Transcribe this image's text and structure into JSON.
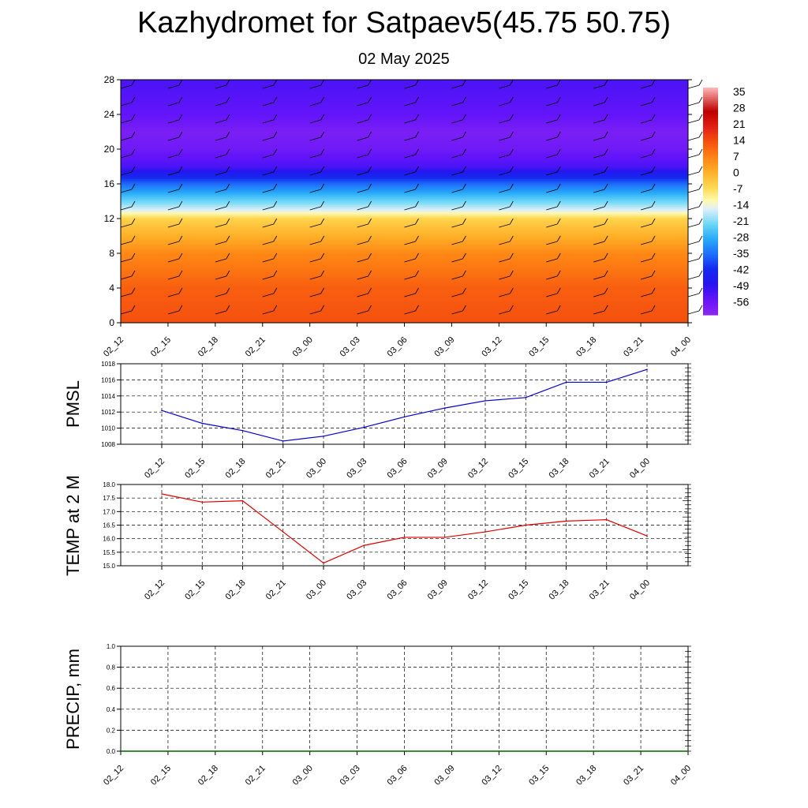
{
  "title": "Kazhydromet for Satpaev5(45.75 50.75)",
  "subtitle": "02 May 2025",
  "time_labels": [
    "02_12",
    "02_15",
    "02_18",
    "02_21",
    "03_00",
    "03_03",
    "03_06",
    "03_09",
    "03_12",
    "03_15",
    "03_18",
    "03_21",
    "04_00"
  ],
  "chart_data": [
    {
      "type": "heatmap",
      "name": "vertical-cross-section",
      "x": [
        "02_12",
        "02_15",
        "02_18",
        "02_21",
        "03_00",
        "03_03",
        "03_06",
        "03_09",
        "03_12",
        "03_15",
        "03_18",
        "03_21",
        "04_00"
      ],
      "ylim": [
        0,
        28
      ],
      "yticks": [
        0,
        4,
        8,
        12,
        16,
        20,
        24,
        28
      ],
      "colorbar": {
        "labels": [
          35,
          28,
          21,
          14,
          7,
          0,
          -7,
          -14,
          -21,
          -28,
          -35,
          -42,
          -49,
          -56
        ],
        "range": [
          -63,
          42
        ]
      },
      "temperature_profile": [
        {
          "level": 0,
          "value": 17
        },
        {
          "level": 4,
          "value": 15
        },
        {
          "level": 8,
          "value": 9
        },
        {
          "level": 12,
          "value": -3
        },
        {
          "level": 13,
          "value": -14
        },
        {
          "level": 16,
          "value": -35
        },
        {
          "level": 18,
          "value": -53
        },
        {
          "level": 20,
          "value": -58
        },
        {
          "level": 22,
          "value": -60
        },
        {
          "level": 24,
          "value": -56
        },
        {
          "level": 28,
          "value": -53
        }
      ]
    },
    {
      "type": "line",
      "ylabel": "PMSL",
      "x": [
        "02_12",
        "02_15",
        "02_18",
        "02_21",
        "03_00",
        "03_03",
        "03_06",
        "03_09",
        "03_12",
        "03_15",
        "03_18",
        "03_21",
        "04_00"
      ],
      "values": [
        1012.2,
        1010.6,
        1009.7,
        1008.4,
        1009.0,
        1010.1,
        1011.4,
        1012.5,
        1013.4,
        1013.8,
        1015.7,
        1015.7,
        1017.3
      ],
      "ylim": [
        1008,
        1018
      ],
      "yticks": [
        1008,
        1010,
        1012,
        1014,
        1016,
        1018
      ],
      "color": "#0000cc"
    },
    {
      "type": "line",
      "ylabel": "TEMP at 2 M",
      "x": [
        "02_12",
        "02_15",
        "02_18",
        "02_21",
        "03_00",
        "03_03",
        "03_06",
        "03_09",
        "03_12",
        "03_15",
        "03_18",
        "03_21",
        "04_00"
      ],
      "values": [
        17.65,
        17.35,
        17.4,
        16.25,
        15.1,
        15.75,
        16.05,
        16.05,
        16.25,
        16.5,
        16.65,
        16.7,
        16.1
      ],
      "ylim": [
        15.0,
        18.0
      ],
      "yticks": [
        "15.0",
        "15.5",
        "16.0",
        "16.5",
        "17.0",
        "17.5",
        "18.0"
      ],
      "color": "#dd0000"
    },
    {
      "type": "line",
      "ylabel": "PRECIP, mm",
      "x": [
        "02_12",
        "02_15",
        "02_18",
        "02_21",
        "03_00",
        "03_03",
        "03_06",
        "03_09",
        "03_12",
        "03_15",
        "03_18",
        "03_21",
        "04_00"
      ],
      "values": [
        0,
        0,
        0,
        0,
        0,
        0,
        0,
        0,
        0,
        0,
        0,
        0,
        0
      ],
      "ylim": [
        0.0,
        1.0
      ],
      "yticks": [
        "0.0",
        "0.2",
        "0.4",
        "0.6",
        "0.8",
        "1.0"
      ],
      "color": "#006400"
    }
  ]
}
